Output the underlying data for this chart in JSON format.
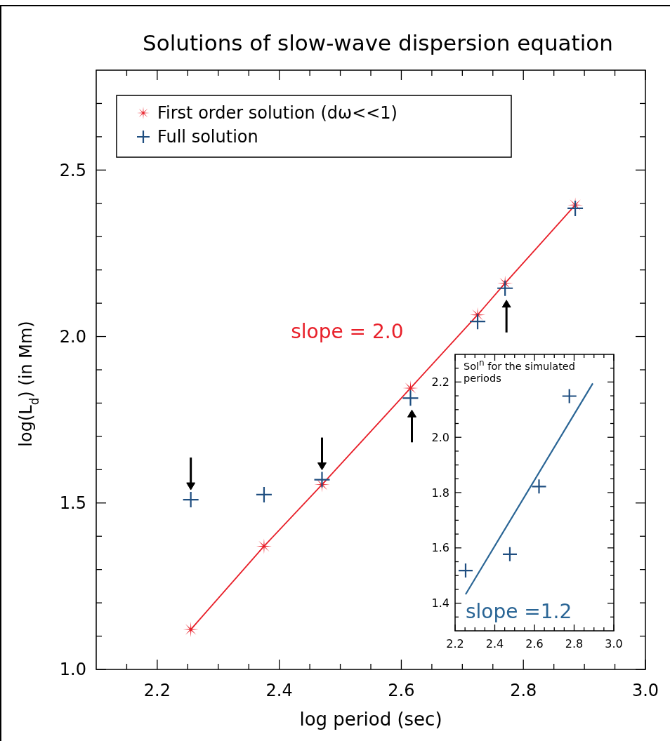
{
  "chart_data": [
    {
      "type": "scatter",
      "title": "Solutions of slow-wave dispersion equation",
      "xlabel": "log period (sec)",
      "ylabel": "log(L$_{d}$) (in Mm)",
      "legend": "top left",
      "xlim": [
        2.1,
        3.0
      ],
      "xticks": [
        {
          "value": 2.15,
          "label": null
        },
        {
          "value": 2.2,
          "label": "2.2"
        },
        {
          "value": 2.25,
          "label": null
        },
        {
          "value": 2.3,
          "label": null
        },
        {
          "value": 2.35,
          "label": null
        },
        {
          "value": 2.4,
          "label": "2.4"
        },
        {
          "value": 2.45,
          "label": null
        },
        {
          "value": 2.5,
          "label": null
        },
        {
          "value": 2.55,
          "label": null
        },
        {
          "value": 2.6,
          "label": "2.6"
        },
        {
          "value": 2.65,
          "label": null
        },
        {
          "value": 2.7,
          "label": null
        },
        {
          "value": 2.75,
          "label": null
        },
        {
          "value": 2.8,
          "label": "2.8"
        },
        {
          "value": 2.85,
          "label": null
        },
        {
          "value": 2.9,
          "label": null
        },
        {
          "value": 2.95,
          "label": null
        },
        {
          "value": 3.0,
          "label": "3.0"
        }
      ],
      "ylim": [
        1.0,
        2.8
      ],
      "yticks": [
        {
          "value": 1.0,
          "label": "1.0"
        },
        {
          "value": 1.1,
          "label": null
        },
        {
          "value": 1.2,
          "label": null
        },
        {
          "value": 1.3,
          "label": null
        },
        {
          "value": 1.4,
          "label": null
        },
        {
          "value": 1.5,
          "label": "1.5"
        },
        {
          "value": 1.6,
          "label": null
        },
        {
          "value": 1.7,
          "label": null
        },
        {
          "value": 1.8,
          "label": null
        },
        {
          "value": 1.9,
          "label": null
        },
        {
          "value": 2.0,
          "label": "2.0"
        },
        {
          "value": 2.1,
          "label": null
        },
        {
          "value": 2.2,
          "label": null
        },
        {
          "value": 2.3,
          "label": null
        },
        {
          "value": 2.4,
          "label": null
        },
        {
          "value": 2.5,
          "label": "2.5"
        },
        {
          "value": 2.6,
          "label": null
        },
        {
          "value": 2.7,
          "label": null
        }
      ],
      "x": [
        2.255,
        2.375,
        2.47,
        2.615,
        2.725,
        2.77,
        2.885
      ],
      "series": [
        {
          "name": "First order solution (dω<<1)",
          "type": "line",
          "color": "#e8202a",
          "marker": "star",
          "values": [
            1.12,
            1.37,
            1.555,
            1.845,
            2.065,
            2.16,
            2.395
          ]
        },
        {
          "name": "Full solution",
          "type": "scatter",
          "color": "#1f4e80",
          "marker": "cross",
          "values": [
            1.51,
            1.525,
            1.57,
            1.815,
            2.045,
            2.145,
            2.385
          ]
        }
      ],
      "annotations": [
        "slope = 2.0"
      ]
    },
    {
      "type": "scatter",
      "title": "Sol$^{n}$ for the simulated periods",
      "xlim": [
        2.2,
        3.0
      ],
      "xticks": [
        {
          "value": 2.2,
          "label": "2.2"
        },
        {
          "value": 2.25,
          "label": null
        },
        {
          "value": 2.3,
          "label": null
        },
        {
          "value": 2.35,
          "label": null
        },
        {
          "value": 2.4,
          "label": "2.4"
        },
        {
          "value": 2.45,
          "label": null
        },
        {
          "value": 2.5,
          "label": null
        },
        {
          "value": 2.55,
          "label": null
        },
        {
          "value": 2.6,
          "label": "2.6"
        },
        {
          "value": 2.65,
          "label": null
        },
        {
          "value": 2.7,
          "label": null
        },
        {
          "value": 2.75,
          "label": null
        },
        {
          "value": 2.8,
          "label": "2.8"
        },
        {
          "value": 2.85,
          "label": null
        },
        {
          "value": 2.9,
          "label": null
        },
        {
          "value": 2.95,
          "label": null
        },
        {
          "value": 3.0,
          "label": "3.0"
        }
      ],
      "ylim": [
        1.3,
        2.3
      ],
      "yticks": [
        {
          "value": 1.35,
          "label": null
        },
        {
          "value": 1.4,
          "label": "1.4"
        },
        {
          "value": 1.45,
          "label": null
        },
        {
          "value": 1.5,
          "label": null
        },
        {
          "value": 1.55,
          "label": null
        },
        {
          "value": 1.6,
          "label": "1.6"
        },
        {
          "value": 1.65,
          "label": null
        },
        {
          "value": 1.7,
          "label": null
        },
        {
          "value": 1.75,
          "label": null
        },
        {
          "value": 1.8,
          "label": "1.8"
        },
        {
          "value": 1.85,
          "label": null
        },
        {
          "value": 1.9,
          "label": null
        },
        {
          "value": 1.95,
          "label": null
        },
        {
          "value": 2.0,
          "label": "2.0"
        },
        {
          "value": 2.05,
          "label": null
        },
        {
          "value": 2.1,
          "label": null
        },
        {
          "value": 2.15,
          "label": null
        },
        {
          "value": 2.2,
          "label": "2.2"
        },
        {
          "value": 2.25,
          "label": null
        }
      ],
      "x": [
        2.253,
        2.476,
        2.623,
        2.776
      ],
      "series": [
        {
          "type": "scatter",
          "color": "#1f4e80",
          "marker": "cross",
          "values": [
            1.518,
            1.577,
            1.822,
            2.149
          ]
        },
        {
          "type": "line",
          "color": "#2a6595",
          "x": [
            2.253,
            2.894
          ],
          "values": [
            1.432,
            2.195
          ],
          "marker": "none"
        }
      ],
      "annotations": [
        "slope =1.2"
      ]
    }
  ]
}
